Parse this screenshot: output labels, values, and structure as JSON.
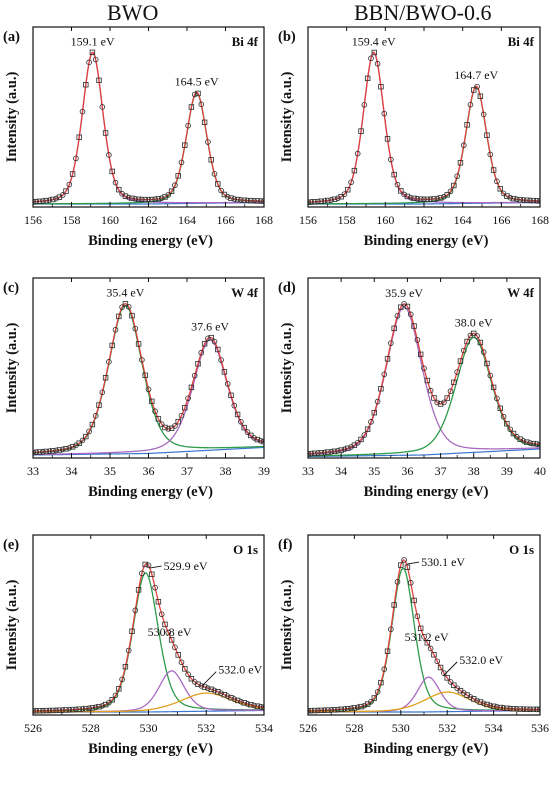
{
  "column_titles": [
    "BWO",
    "BBN/BWO-0.6"
  ],
  "colors": {
    "envelope": "#e0413c",
    "marker": "#2a2a2a",
    "green": "#2e9a4a",
    "purple": "#a86bc0",
    "blue": "#3a76d0",
    "orange": "#e0a020",
    "gray": "#9a9a9a"
  },
  "chart_data": [
    {
      "type": "line",
      "panel": "(a)",
      "title": "Bi 4f",
      "xlabel": "Binding energy (eV)",
      "ylabel": "Intensity (a.u.)",
      "xlim": [
        156,
        168
      ],
      "xticks": [
        156,
        158,
        160,
        162,
        164,
        166,
        168
      ],
      "peak_labels": [
        {
          "x": 159.1,
          "text": "159.1 eV"
        },
        {
          "x": 164.5,
          "text": "164.5 eV"
        }
      ],
      "series": [
        {
          "role": "component",
          "color": "purple",
          "center": 159.1,
          "height": 1.0,
          "width": 0.55
        },
        {
          "role": "component",
          "color": "green",
          "center": 164.5,
          "height": 0.73,
          "width": 0.55
        },
        {
          "role": "background",
          "color": "blue",
          "points": [
            [
              156,
              0.02
            ],
            [
              162,
              0.02
            ],
            [
              168,
              0.03
            ]
          ]
        }
      ]
    },
    {
      "type": "line",
      "panel": "(b)",
      "title": "Bi 4f",
      "xlabel": "Binding energy (eV)",
      "ylabel": "Intensity (a.u.)",
      "xlim": [
        156,
        168
      ],
      "xticks": [
        156,
        158,
        160,
        162,
        164,
        166,
        168
      ],
      "peak_labels": [
        {
          "x": 159.4,
          "text": "159.4 eV"
        },
        {
          "x": 164.7,
          "text": "164.7 eV"
        }
      ],
      "series": [
        {
          "role": "component",
          "color": "purple",
          "center": 159.4,
          "height": 1.0,
          "width": 0.55
        },
        {
          "role": "component",
          "color": "green",
          "center": 164.7,
          "height": 0.77,
          "width": 0.55
        },
        {
          "role": "background",
          "color": "blue",
          "points": [
            [
              156,
              0.02
            ],
            [
              162,
              0.02
            ],
            [
              168,
              0.03
            ]
          ]
        }
      ]
    },
    {
      "type": "line",
      "panel": "(c)",
      "title": "W 4f",
      "xlabel": "Binding energy (eV)",
      "ylabel": "Intensity (a.u.)",
      "xlim": [
        33,
        39
      ],
      "xticks": [
        33,
        34,
        35,
        36,
        37,
        38,
        39
      ],
      "peak_labels": [
        {
          "x": 35.4,
          "text": "35.4 eV"
        },
        {
          "x": 37.6,
          "text": "37.6 eV"
        }
      ],
      "series": [
        {
          "role": "component",
          "color": "green",
          "center": 35.4,
          "height": 0.98,
          "width": 0.45
        },
        {
          "role": "component",
          "color": "purple",
          "center": 37.6,
          "height": 0.73,
          "width": 0.45
        },
        {
          "role": "background",
          "color": "blue",
          "points": [
            [
              33,
              0.02
            ],
            [
              36,
              0.03
            ],
            [
              39,
              0.07
            ]
          ]
        }
      ]
    },
    {
      "type": "line",
      "panel": "(d)",
      "title": "W 4f",
      "xlabel": "Binding energy (eV)",
      "ylabel": "Intensity (a.u.)",
      "xlim": [
        33,
        40
      ],
      "xticks": [
        33,
        34,
        35,
        36,
        37,
        38,
        39,
        40
      ],
      "peak_labels": [
        {
          "x": 35.9,
          "text": "35.9 eV"
        },
        {
          "x": 38.0,
          "text": "38.0 eV"
        }
      ],
      "series": [
        {
          "role": "component",
          "color": "purple",
          "center": 35.9,
          "height": 0.98,
          "width": 0.55
        },
        {
          "role": "component",
          "color": "green",
          "center": 38.0,
          "height": 0.76,
          "width": 0.55
        },
        {
          "role": "background",
          "color": "blue",
          "points": [
            [
              33,
              0.01
            ],
            [
              36.5,
              0.02
            ],
            [
              40,
              0.06
            ]
          ]
        }
      ]
    },
    {
      "type": "line",
      "panel": "(e)",
      "title": "O 1s",
      "xlabel": "Binding energy (eV)",
      "ylabel": "Intensity (a.u.)",
      "xlim": [
        526,
        534
      ],
      "xticks": [
        526,
        528,
        530,
        532,
        534
      ],
      "peak_labels": [
        {
          "x": 529.9,
          "text": "529.9 eV"
        },
        {
          "x": 530.8,
          "text": "530.8 eV"
        },
        {
          "x": 532.0,
          "text": "532.0 eV"
        }
      ],
      "series": [
        {
          "role": "component",
          "color": "green",
          "center": 529.9,
          "height": 0.92,
          "width": 0.45
        },
        {
          "role": "component",
          "color": "purple",
          "center": 530.8,
          "height": 0.27,
          "width": 0.45
        },
        {
          "role": "component",
          "color": "orange",
          "center": 532.0,
          "height": 0.12,
          "width": 0.9
        },
        {
          "role": "background",
          "color": "blue",
          "points": [
            [
              526,
              0.02
            ],
            [
              530,
              0.02
            ],
            [
              534,
              0.03
            ]
          ]
        }
      ]
    },
    {
      "type": "line",
      "panel": "(f)",
      "title": "O 1s",
      "xlabel": "Binding energy (eV)",
      "ylabel": "Intensity (a.u.)",
      "xlim": [
        526,
        536
      ],
      "xticks": [
        526,
        528,
        530,
        532,
        534,
        536
      ],
      "peak_labels": [
        {
          "x": 530.1,
          "text": "530.1 eV"
        },
        {
          "x": 531.2,
          "text": "531.2 eV"
        },
        {
          "x": 532.0,
          "text": "532.0 eV"
        }
      ],
      "series": [
        {
          "role": "component",
          "color": "green",
          "center": 530.1,
          "height": 0.95,
          "width": 0.5
        },
        {
          "role": "component",
          "color": "purple",
          "center": 531.2,
          "height": 0.23,
          "width": 0.5
        },
        {
          "role": "component",
          "color": "orange",
          "center": 532.0,
          "height": 0.13,
          "width": 1.0
        },
        {
          "role": "background",
          "color": "blue",
          "points": [
            [
              526,
              0.02
            ],
            [
              531,
              0.02
            ],
            [
              536,
              0.03
            ]
          ]
        }
      ]
    }
  ]
}
